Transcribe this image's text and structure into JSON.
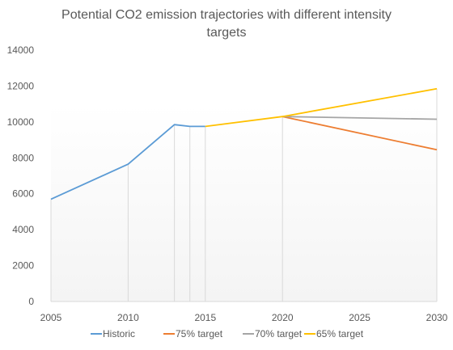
{
  "chart_data": {
    "type": "line",
    "title_lines": [
      "Potential CO2 emission trajectories  with different intensity",
      "targets"
    ],
    "xlabel": "",
    "ylabel": "",
    "xlim": [
      2005,
      2030
    ],
    "ylim": [
      0,
      14000
    ],
    "x_ticks": [
      "2005",
      "2010",
      "2015",
      "2020",
      "2025",
      "2030"
    ],
    "y_ticks": [
      "0",
      "2000",
      "4000",
      "6000",
      "8000",
      "10000",
      "12000",
      "14000"
    ],
    "grid": false,
    "legend_position": "bottom",
    "series": [
      {
        "name": "Historic",
        "color": "#5b9bd5",
        "points": [
          [
            2005,
            5700
          ],
          [
            2010,
            7650
          ],
          [
            2013,
            9850
          ],
          [
            2014,
            9750
          ],
          [
            2015,
            9750
          ]
        ]
      },
      {
        "name": "75% target",
        "color": "#ed7d31",
        "points": [
          [
            2020,
            10300
          ],
          [
            2030,
            8450
          ]
        ]
      },
      {
        "name": "70% target",
        "color": "#a5a5a5",
        "points": [
          [
            2020,
            10300
          ],
          [
            2030,
            10150
          ]
        ]
      },
      {
        "name": "65% target",
        "color": "#ffc000",
        "points": [
          [
            2015,
            9750
          ],
          [
            2020,
            10300
          ],
          [
            2030,
            11850
          ]
        ]
      }
    ],
    "drop_lines_x": [
      2005,
      2010,
      2013,
      2014,
      2015,
      2020,
      2030
    ]
  }
}
